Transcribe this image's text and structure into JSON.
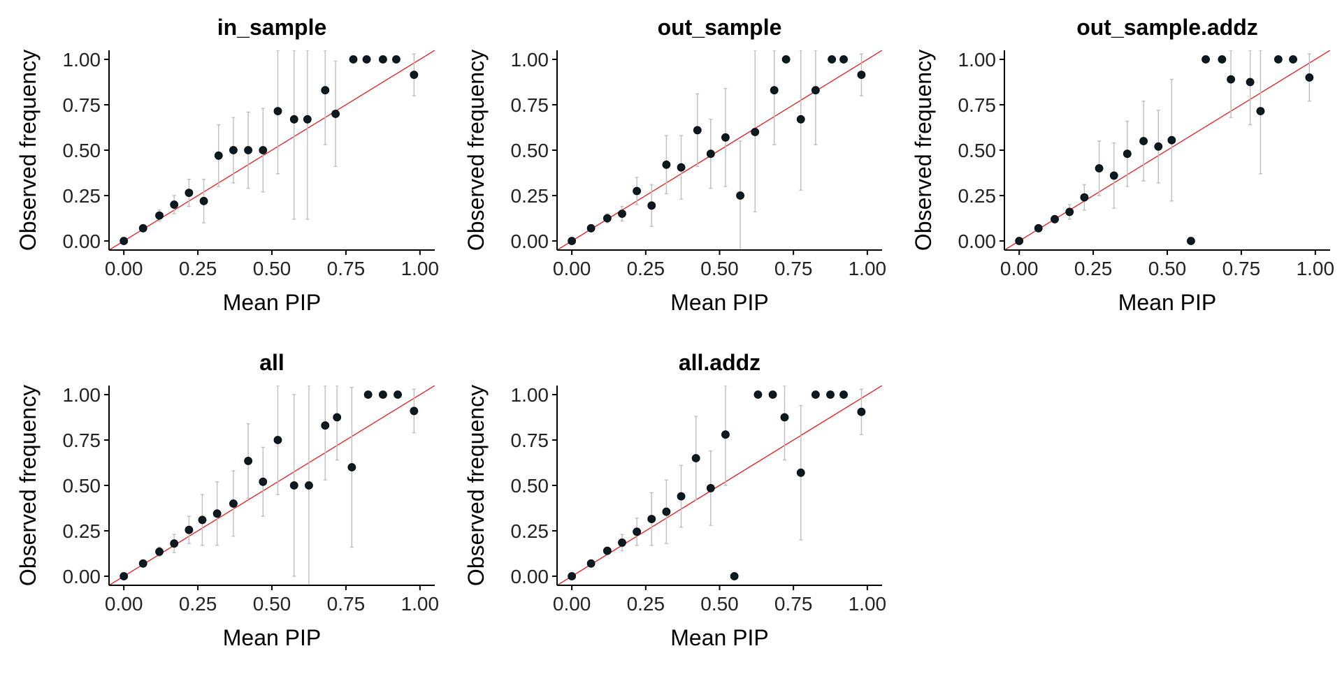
{
  "colors": {
    "point": "#0c1a22",
    "errorbar": "#bdbdbd",
    "reference_line": "#e41a1c",
    "axis": "#000000"
  },
  "chart_data": [
    {
      "type": "scatter",
      "title": "in_sample",
      "xlabel": "Mean PIP",
      "ylabel": "Observed frequency",
      "xlim": [
        -0.05,
        1.05
      ],
      "ylim": [
        -0.05,
        1.05
      ],
      "xticks": [
        "0.00",
        "0.25",
        "0.50",
        "0.75",
        "1.00"
      ],
      "yticks": [
        "0.00",
        "0.25",
        "0.50",
        "0.75",
        "1.00"
      ],
      "reference_line": "y = x",
      "points": [
        {
          "x": 0.0,
          "y": 0.0,
          "lo": 0.0,
          "hi": 0.0
        },
        {
          "x": 0.065,
          "y": 0.07,
          "lo": 0.06,
          "hi": 0.08
        },
        {
          "x": 0.12,
          "y": 0.14,
          "lo": 0.11,
          "hi": 0.17
        },
        {
          "x": 0.17,
          "y": 0.2,
          "lo": 0.15,
          "hi": 0.25
        },
        {
          "x": 0.22,
          "y": 0.265,
          "lo": 0.19,
          "hi": 0.34
        },
        {
          "x": 0.27,
          "y": 0.22,
          "lo": 0.1,
          "hi": 0.34
        },
        {
          "x": 0.32,
          "y": 0.47,
          "lo": 0.3,
          "hi": 0.64
        },
        {
          "x": 0.37,
          "y": 0.5,
          "lo": 0.32,
          "hi": 0.68
        },
        {
          "x": 0.42,
          "y": 0.5,
          "lo": 0.29,
          "hi": 0.71
        },
        {
          "x": 0.47,
          "y": 0.5,
          "lo": 0.27,
          "hi": 0.73
        },
        {
          "x": 0.52,
          "y": 0.715,
          "lo": 0.37,
          "hi": 1.05
        },
        {
          "x": 0.575,
          "y": 0.67,
          "lo": 0.12,
          "hi": 1.05
        },
        {
          "x": 0.62,
          "y": 0.67,
          "lo": 0.12,
          "hi": 1.05
        },
        {
          "x": 0.68,
          "y": 0.83,
          "lo": 0.53,
          "hi": 1.05
        },
        {
          "x": 0.715,
          "y": 0.7,
          "lo": 0.41,
          "hi": 0.99
        },
        {
          "x": 0.775,
          "y": 1.0,
          "lo": 1.0,
          "hi": 1.0
        },
        {
          "x": 0.82,
          "y": 1.0,
          "lo": 1.0,
          "hi": 1.0
        },
        {
          "x": 0.875,
          "y": 1.0,
          "lo": 1.0,
          "hi": 1.0
        },
        {
          "x": 0.92,
          "y": 1.0,
          "lo": 1.0,
          "hi": 1.0
        },
        {
          "x": 0.98,
          "y": 0.915,
          "lo": 0.8,
          "hi": 1.03
        }
      ]
    },
    {
      "type": "scatter",
      "title": "out_sample",
      "xlabel": "Mean PIP",
      "ylabel": "Observed frequency",
      "xlim": [
        -0.05,
        1.05
      ],
      "ylim": [
        -0.05,
        1.05
      ],
      "xticks": [
        "0.00",
        "0.25",
        "0.50",
        "0.75",
        "1.00"
      ],
      "yticks": [
        "0.00",
        "0.25",
        "0.50",
        "0.75",
        "1.00"
      ],
      "reference_line": "y = x",
      "points": [
        {
          "x": 0.0,
          "y": 0.0,
          "lo": 0.0,
          "hi": 0.0
        },
        {
          "x": 0.065,
          "y": 0.07,
          "lo": 0.06,
          "hi": 0.08
        },
        {
          "x": 0.12,
          "y": 0.125,
          "lo": 0.1,
          "hi": 0.15
        },
        {
          "x": 0.17,
          "y": 0.15,
          "lo": 0.11,
          "hi": 0.19
        },
        {
          "x": 0.22,
          "y": 0.275,
          "lo": 0.2,
          "hi": 0.35
        },
        {
          "x": 0.27,
          "y": 0.195,
          "lo": 0.08,
          "hi": 0.31
        },
        {
          "x": 0.32,
          "y": 0.42,
          "lo": 0.26,
          "hi": 0.58
        },
        {
          "x": 0.37,
          "y": 0.405,
          "lo": 0.23,
          "hi": 0.58
        },
        {
          "x": 0.425,
          "y": 0.61,
          "lo": 0.41,
          "hi": 0.81
        },
        {
          "x": 0.47,
          "y": 0.48,
          "lo": 0.29,
          "hi": 0.67
        },
        {
          "x": 0.52,
          "y": 0.57,
          "lo": 0.3,
          "hi": 0.84
        },
        {
          "x": 0.57,
          "y": 0.25,
          "lo": -0.05,
          "hi": 0.55
        },
        {
          "x": 0.62,
          "y": 0.6,
          "lo": 0.16,
          "hi": 1.05
        },
        {
          "x": 0.685,
          "y": 0.83,
          "lo": 0.53,
          "hi": 1.05
        },
        {
          "x": 0.725,
          "y": 1.0,
          "lo": 1.0,
          "hi": 1.0
        },
        {
          "x": 0.775,
          "y": 0.67,
          "lo": 0.28,
          "hi": 1.05
        },
        {
          "x": 0.825,
          "y": 0.83,
          "lo": 0.53,
          "hi": 1.05
        },
        {
          "x": 0.88,
          "y": 1.0,
          "lo": 1.0,
          "hi": 1.0
        },
        {
          "x": 0.92,
          "y": 1.0,
          "lo": 1.0,
          "hi": 1.0
        },
        {
          "x": 0.98,
          "y": 0.915,
          "lo": 0.8,
          "hi": 1.03
        }
      ]
    },
    {
      "type": "scatter",
      "title": "out_sample.addz",
      "xlabel": "Mean PIP",
      "ylabel": "Observed frequency",
      "xlim": [
        -0.05,
        1.05
      ],
      "ylim": [
        -0.05,
        1.05
      ],
      "xticks": [
        "0.00",
        "0.25",
        "0.50",
        "0.75",
        "1.00"
      ],
      "yticks": [
        "0.00",
        "0.25",
        "0.50",
        "0.75",
        "1.00"
      ],
      "reference_line": "y = x",
      "points": [
        {
          "x": 0.0,
          "y": 0.0,
          "lo": 0.0,
          "hi": 0.0
        },
        {
          "x": 0.065,
          "y": 0.07,
          "lo": 0.06,
          "hi": 0.08
        },
        {
          "x": 0.12,
          "y": 0.12,
          "lo": 0.1,
          "hi": 0.14
        },
        {
          "x": 0.17,
          "y": 0.16,
          "lo": 0.12,
          "hi": 0.2
        },
        {
          "x": 0.22,
          "y": 0.24,
          "lo": 0.17,
          "hi": 0.31
        },
        {
          "x": 0.27,
          "y": 0.4,
          "lo": 0.25,
          "hi": 0.55
        },
        {
          "x": 0.32,
          "y": 0.36,
          "lo": 0.18,
          "hi": 0.54
        },
        {
          "x": 0.365,
          "y": 0.48,
          "lo": 0.3,
          "hi": 0.66
        },
        {
          "x": 0.42,
          "y": 0.55,
          "lo": 0.33,
          "hi": 0.77
        },
        {
          "x": 0.47,
          "y": 0.52,
          "lo": 0.32,
          "hi": 0.72
        },
        {
          "x": 0.515,
          "y": 0.555,
          "lo": 0.22,
          "hi": 0.89
        },
        {
          "x": 0.58,
          "y": 0.0,
          "lo": 0.0,
          "hi": 0.0
        },
        {
          "x": 0.63,
          "y": 1.0,
          "lo": 1.0,
          "hi": 1.0
        },
        {
          "x": 0.685,
          "y": 1.0,
          "lo": 1.0,
          "hi": 1.0
        },
        {
          "x": 0.715,
          "y": 0.89,
          "lo": 0.68,
          "hi": 1.05
        },
        {
          "x": 0.78,
          "y": 0.875,
          "lo": 0.64,
          "hi": 1.05
        },
        {
          "x": 0.815,
          "y": 0.715,
          "lo": 0.37,
          "hi": 1.05
        },
        {
          "x": 0.875,
          "y": 1.0,
          "lo": 1.0,
          "hi": 1.0
        },
        {
          "x": 0.925,
          "y": 1.0,
          "lo": 1.0,
          "hi": 1.0
        },
        {
          "x": 0.98,
          "y": 0.9,
          "lo": 0.77,
          "hi": 1.03
        }
      ]
    },
    {
      "type": "scatter",
      "title": "all",
      "xlabel": "Mean PIP",
      "ylabel": "Observed frequency",
      "xlim": [
        -0.05,
        1.05
      ],
      "ylim": [
        -0.05,
        1.05
      ],
      "xticks": [
        "0.00",
        "0.25",
        "0.50",
        "0.75",
        "1.00"
      ],
      "yticks": [
        "0.00",
        "0.25",
        "0.50",
        "0.75",
        "1.00"
      ],
      "reference_line": "y = x",
      "points": [
        {
          "x": 0.0,
          "y": 0.0,
          "lo": 0.0,
          "hi": 0.0
        },
        {
          "x": 0.065,
          "y": 0.07,
          "lo": 0.06,
          "hi": 0.08
        },
        {
          "x": 0.12,
          "y": 0.135,
          "lo": 0.11,
          "hi": 0.16
        },
        {
          "x": 0.17,
          "y": 0.18,
          "lo": 0.13,
          "hi": 0.23
        },
        {
          "x": 0.22,
          "y": 0.255,
          "lo": 0.18,
          "hi": 0.33
        },
        {
          "x": 0.265,
          "y": 0.31,
          "lo": 0.17,
          "hi": 0.45
        },
        {
          "x": 0.315,
          "y": 0.345,
          "lo": 0.17,
          "hi": 0.52
        },
        {
          "x": 0.37,
          "y": 0.4,
          "lo": 0.22,
          "hi": 0.58
        },
        {
          "x": 0.42,
          "y": 0.635,
          "lo": 0.43,
          "hi": 0.84
        },
        {
          "x": 0.47,
          "y": 0.52,
          "lo": 0.33,
          "hi": 0.71
        },
        {
          "x": 0.52,
          "y": 0.75,
          "lo": 0.45,
          "hi": 1.05
        },
        {
          "x": 0.575,
          "y": 0.5,
          "lo": 0.0,
          "hi": 1.0
        },
        {
          "x": 0.625,
          "y": 0.5,
          "lo": -0.05,
          "hi": 1.05
        },
        {
          "x": 0.68,
          "y": 0.83,
          "lo": 0.53,
          "hi": 1.05
        },
        {
          "x": 0.72,
          "y": 0.875,
          "lo": 0.64,
          "hi": 1.05
        },
        {
          "x": 0.77,
          "y": 0.6,
          "lo": 0.16,
          "hi": 1.04
        },
        {
          "x": 0.825,
          "y": 1.0,
          "lo": 1.0,
          "hi": 1.0
        },
        {
          "x": 0.875,
          "y": 1.0,
          "lo": 1.0,
          "hi": 1.0
        },
        {
          "x": 0.925,
          "y": 1.0,
          "lo": 1.0,
          "hi": 1.0
        },
        {
          "x": 0.98,
          "y": 0.91,
          "lo": 0.79,
          "hi": 1.03
        }
      ]
    },
    {
      "type": "scatter",
      "title": "all.addz",
      "xlabel": "Mean PIP",
      "ylabel": "Observed frequency",
      "xlim": [
        -0.05,
        1.05
      ],
      "ylim": [
        -0.05,
        1.05
      ],
      "xticks": [
        "0.00",
        "0.25",
        "0.50",
        "0.75",
        "1.00"
      ],
      "yticks": [
        "0.00",
        "0.25",
        "0.50",
        "0.75",
        "1.00"
      ],
      "reference_line": "y = x",
      "points": [
        {
          "x": 0.0,
          "y": 0.0,
          "lo": 0.0,
          "hi": 0.0
        },
        {
          "x": 0.065,
          "y": 0.07,
          "lo": 0.06,
          "hi": 0.08
        },
        {
          "x": 0.12,
          "y": 0.14,
          "lo": 0.12,
          "hi": 0.16
        },
        {
          "x": 0.17,
          "y": 0.185,
          "lo": 0.14,
          "hi": 0.23
        },
        {
          "x": 0.22,
          "y": 0.245,
          "lo": 0.17,
          "hi": 0.32
        },
        {
          "x": 0.27,
          "y": 0.315,
          "lo": 0.17,
          "hi": 0.46
        },
        {
          "x": 0.32,
          "y": 0.355,
          "lo": 0.18,
          "hi": 0.53
        },
        {
          "x": 0.37,
          "y": 0.44,
          "lo": 0.27,
          "hi": 0.61
        },
        {
          "x": 0.42,
          "y": 0.65,
          "lo": 0.42,
          "hi": 0.88
        },
        {
          "x": 0.47,
          "y": 0.485,
          "lo": 0.28,
          "hi": 0.69
        },
        {
          "x": 0.52,
          "y": 0.78,
          "lo": 0.5,
          "hi": 1.05
        },
        {
          "x": 0.55,
          "y": 0.0,
          "lo": 0.0,
          "hi": 0.0
        },
        {
          "x": 0.63,
          "y": 1.0,
          "lo": 1.0,
          "hi": 1.0
        },
        {
          "x": 0.68,
          "y": 1.0,
          "lo": 1.0,
          "hi": 1.0
        },
        {
          "x": 0.72,
          "y": 0.875,
          "lo": 0.64,
          "hi": 1.05
        },
        {
          "x": 0.775,
          "y": 0.57,
          "lo": 0.2,
          "hi": 0.94
        },
        {
          "x": 0.825,
          "y": 1.0,
          "lo": 1.0,
          "hi": 1.0
        },
        {
          "x": 0.875,
          "y": 1.0,
          "lo": 1.0,
          "hi": 1.0
        },
        {
          "x": 0.92,
          "y": 1.0,
          "lo": 1.0,
          "hi": 1.0
        },
        {
          "x": 0.98,
          "y": 0.905,
          "lo": 0.78,
          "hi": 1.03
        }
      ]
    }
  ]
}
